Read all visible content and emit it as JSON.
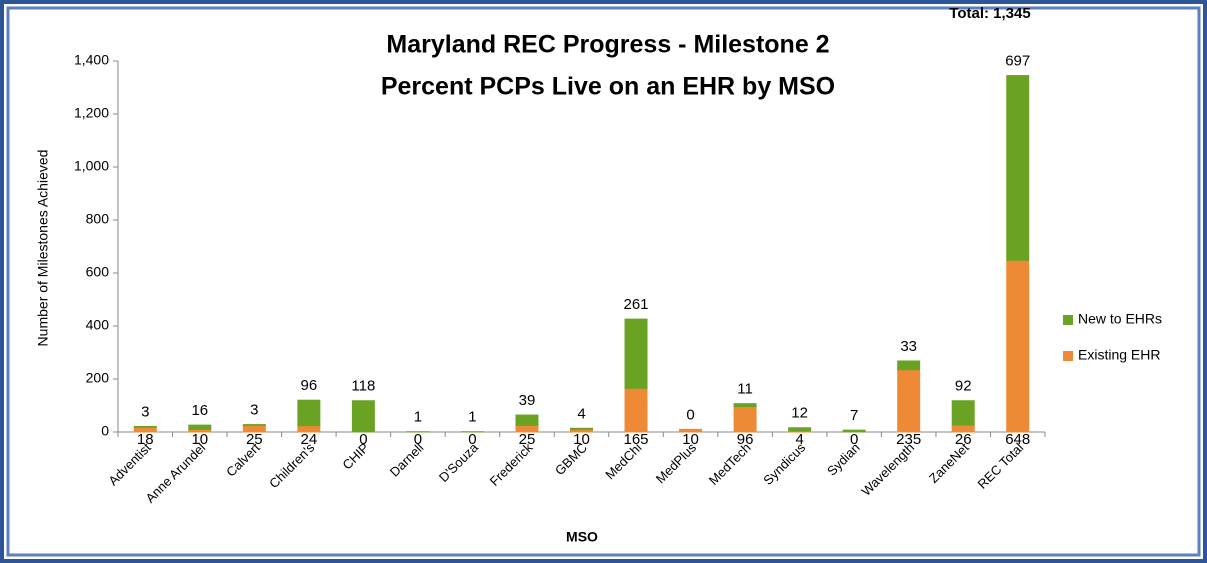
{
  "chart_data": {
    "type": "stacked_bar",
    "title": [
      "Maryland REC Progress - Milestone 2",
      "Percent PCPs Live on an EHR by MSO"
    ],
    "annotation": "Total:  1,345",
    "x_label": "MSO",
    "y_label": "Number of Milestones Achieved",
    "categories": [
      "Adventist",
      "Anne Arundel",
      "Calvert",
      "Children's",
      "CHIP",
      "Darnell",
      "D'Souza",
      "Frederick",
      "GBMC",
      "MedChi",
      "MedPlus",
      "MedTech",
      "Syndicus",
      "Sydian",
      "Wavelength",
      "ZaneNet",
      "REC Total"
    ],
    "series": [
      {
        "name": "Existing EHR",
        "color": "#ee8a35",
        "values": [
          18,
          10,
          25,
          24,
          0,
          0,
          0,
          25,
          10,
          165,
          10,
          96,
          4,
          0,
          235,
          26,
          648
        ]
      },
      {
        "name": "New to EHRs",
        "color": "#6aa324",
        "values": [
          3,
          16,
          3,
          96,
          118,
          1,
          1,
          39,
          4,
          261,
          0,
          11,
          12,
          7,
          33,
          92,
          697
        ]
      }
    ],
    "ylim": [
      0,
      1400
    ],
    "yticks": [
      0,
      200,
      400,
      600,
      800,
      {
        "value": 1000,
        "label": "1,000"
      },
      {
        "value": 1200,
        "label": "1,200"
      },
      {
        "value": 1400,
        "label": "1,400"
      }
    ],
    "legend": "right"
  }
}
